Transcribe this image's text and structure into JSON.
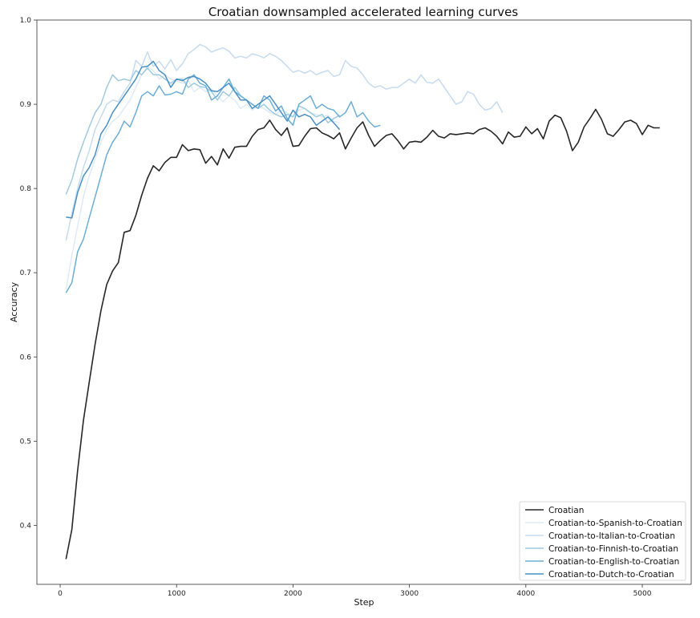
{
  "chart_data": {
    "type": "line",
    "title": "Croatian downsampled accelerated learning curves",
    "xlabel": "Step",
    "ylabel": "Accuracy",
    "xlim": [
      -200,
      5420
    ],
    "ylim": [
      0.33,
      1.0
    ],
    "xticks": [
      0,
      1000,
      2000,
      3000,
      4000,
      5000
    ],
    "yticks": [
      0.4,
      0.5,
      0.6,
      0.7,
      0.8,
      0.9,
      1.0
    ],
    "xtick_labels": [
      "0",
      "1000",
      "2000",
      "3000",
      "4000",
      "5000"
    ],
    "ytick_labels": [
      "0.4",
      "0.5",
      "0.6",
      "0.7",
      "0.8",
      "0.9",
      "1.0"
    ],
    "grid": false,
    "legend_position": "lower-right",
    "series": [
      {
        "name": "Croatian",
        "color": "#262626",
        "x": [
          50,
          100,
          150,
          200,
          250,
          300,
          350,
          400,
          450,
          500,
          550,
          600,
          650,
          700,
          750,
          800,
          850,
          900,
          950,
          1000,
          1050,
          1100,
          1150,
          1200,
          1250,
          1300,
          1350,
          1400,
          1450,
          1500,
          1550,
          1600,
          1650,
          1700,
          1750,
          1800,
          1850,
          1900,
          1950,
          2000,
          2050,
          2100,
          2150,
          2200,
          2250,
          2300,
          2350,
          2400,
          2450,
          2500,
          2550,
          2600,
          2650,
          2700,
          2750,
          2800,
          2850,
          2900,
          2950,
          3000,
          3050,
          3100,
          3150,
          3200,
          3250,
          3300,
          3350,
          3400,
          3450,
          3500,
          3550,
          3600,
          3650,
          3700,
          3750,
          3800,
          3850,
          3900,
          3950,
          4000,
          4050,
          4100,
          4150,
          4200,
          4250,
          4300,
          4350,
          4400,
          4450,
          4500,
          4550,
          4600,
          4650,
          4700,
          4750,
          4800,
          4850,
          4900,
          4950,
          5000,
          5050,
          5100,
          5150
        ],
        "y": [
          0.36,
          0.395,
          0.465,
          0.525,
          0.57,
          0.615,
          0.655,
          0.686,
          0.702,
          0.712,
          0.748,
          0.75,
          0.768,
          0.792,
          0.812,
          0.827,
          0.821,
          0.831,
          0.837,
          0.837,
          0.852,
          0.845,
          0.847,
          0.846,
          0.83,
          0.838,
          0.828,
          0.847,
          0.836,
          0.849,
          0.85,
          0.85,
          0.862,
          0.87,
          0.872,
          0.881,
          0.87,
          0.863,
          0.872,
          0.85,
          0.851,
          0.862,
          0.871,
          0.872,
          0.866,
          0.863,
          0.859,
          0.866,
          0.847,
          0.86,
          0.872,
          0.879,
          0.863,
          0.85,
          0.857,
          0.863,
          0.865,
          0.857,
          0.847,
          0.855,
          0.856,
          0.855,
          0.861,
          0.869,
          0.862,
          0.86,
          0.865,
          0.864,
          0.865,
          0.866,
          0.865,
          0.87,
          0.872,
          0.868,
          0.862,
          0.853,
          0.867,
          0.861,
          0.862,
          0.873,
          0.865,
          0.871,
          0.859,
          0.88,
          0.887,
          0.884,
          0.868,
          0.845,
          0.855,
          0.873,
          0.883,
          0.894,
          0.882,
          0.865,
          0.862,
          0.87,
          0.879,
          0.881,
          0.877,
          0.864,
          0.875,
          0.872,
          0.872
        ]
      },
      {
        "name": "Croatian-to-Spanish-to-Croatian",
        "color": "#deebf7",
        "x": [
          50,
          100,
          150,
          200,
          250,
          300,
          350,
          400,
          450,
          500,
          550,
          600,
          650,
          700,
          750,
          800,
          850,
          900,
          950,
          1000,
          1050,
          1100,
          1150,
          1200,
          1250,
          1300,
          1350,
          1400,
          1450,
          1500,
          1550,
          1600,
          1650,
          1700,
          1750,
          1800,
          1850,
          1900,
          1950,
          2000,
          2050,
          2100,
          2150,
          2200,
          2250,
          2300,
          2350,
          2400
        ],
        "y": [
          0.68,
          0.72,
          0.755,
          0.79,
          0.815,
          0.835,
          0.855,
          0.87,
          0.88,
          0.885,
          0.895,
          0.905,
          0.92,
          0.935,
          0.945,
          0.94,
          0.93,
          0.935,
          0.93,
          0.928,
          0.925,
          0.928,
          0.915,
          0.92,
          0.915,
          0.918,
          0.91,
          0.903,
          0.91,
          0.905,
          0.895,
          0.9,
          0.893,
          0.898,
          0.895,
          0.89,
          0.888,
          0.893,
          0.89,
          0.885,
          0.893,
          0.895,
          0.89,
          0.888,
          0.885,
          0.887,
          0.88,
          0.878
        ]
      },
      {
        "name": "Croatian-to-Italian-to-Croatian",
        "color": "#c6dbef",
        "x": [
          50,
          100,
          150,
          200,
          250,
          300,
          350,
          400,
          450,
          500,
          550,
          600,
          650,
          700,
          750,
          800,
          850,
          900,
          950,
          1000,
          1050,
          1100,
          1150,
          1200,
          1250,
          1300,
          1350,
          1400,
          1450,
          1500,
          1550,
          1600,
          1650,
          1700,
          1750,
          1800,
          1850,
          1900,
          1950,
          2000,
          2050,
          2100,
          2150,
          2200,
          2250,
          2300,
          2350,
          2400,
          2450,
          2500,
          2550,
          2600,
          2650,
          2700,
          2750,
          2800,
          2850,
          2900,
          2950,
          3000,
          3050,
          3100,
          3150,
          3200,
          3250,
          3300,
          3350,
          3400,
          3450,
          3500,
          3550,
          3600,
          3650,
          3700,
          3750,
          3800
        ],
        "y": [
          0.738,
          0.77,
          0.8,
          0.825,
          0.845,
          0.87,
          0.885,
          0.9,
          0.905,
          0.903,
          0.915,
          0.925,
          0.952,
          0.945,
          0.962,
          0.945,
          0.951,
          0.942,
          0.953,
          0.94,
          0.948,
          0.96,
          0.965,
          0.971,
          0.968,
          0.962,
          0.965,
          0.967,
          0.963,
          0.955,
          0.957,
          0.955,
          0.96,
          0.958,
          0.955,
          0.96,
          0.957,
          0.952,
          0.945,
          0.938,
          0.94,
          0.937,
          0.94,
          0.935,
          0.938,
          0.94,
          0.933,
          0.935,
          0.952,
          0.945,
          0.943,
          0.935,
          0.925,
          0.92,
          0.922,
          0.918,
          0.92,
          0.92,
          0.925,
          0.93,
          0.925,
          0.935,
          0.926,
          0.925,
          0.93,
          0.92,
          0.91,
          0.9,
          0.903,
          0.915,
          0.912,
          0.9,
          0.893,
          0.895,
          0.903,
          0.89
        ]
      },
      {
        "name": "Croatian-to-Finnish-to-Croatian",
        "color": "#9ecae1",
        "x": [
          50,
          100,
          150,
          200,
          250,
          300,
          350,
          400,
          450,
          500,
          550,
          600,
          650,
          700,
          750,
          800,
          850,
          900,
          950,
          1000,
          1050,
          1100,
          1150,
          1200,
          1250,
          1300,
          1350,
          1400,
          1450,
          1500,
          1550,
          1600,
          1650,
          1700,
          1750,
          1800,
          1850,
          1900,
          1950,
          2000,
          2050,
          2100,
          2150,
          2200,
          2250,
          2300,
          2350,
          2400
        ],
        "y": [
          0.793,
          0.81,
          0.835,
          0.855,
          0.873,
          0.89,
          0.9,
          0.92,
          0.935,
          0.928,
          0.93,
          0.928,
          0.94,
          0.935,
          0.943,
          0.935,
          0.935,
          0.93,
          0.925,
          0.93,
          0.93,
          0.92,
          0.925,
          0.921,
          0.92,
          0.915,
          0.905,
          0.915,
          0.91,
          0.92,
          0.91,
          0.905,
          0.9,
          0.895,
          0.9,
          0.893,
          0.888,
          0.885,
          0.888,
          0.885,
          0.898,
          0.895,
          0.89,
          0.885,
          0.888,
          0.878,
          0.883,
          0.887
        ]
      },
      {
        "name": "Croatian-to-English-to-Croatian",
        "color": "#6baed6",
        "x": [
          50,
          100,
          150,
          200,
          250,
          300,
          350,
          400,
          450,
          500,
          550,
          600,
          650,
          700,
          750,
          800,
          850,
          900,
          950,
          1000,
          1050,
          1100,
          1150,
          1200,
          1250,
          1300,
          1350,
          1400,
          1450,
          1500,
          1550,
          1600,
          1650,
          1700,
          1750,
          1800,
          1850,
          1900,
          1950,
          2000,
          2050,
          2100,
          2150,
          2200,
          2250,
          2300,
          2350,
          2400,
          2450,
          2500,
          2550,
          2600,
          2650,
          2700,
          2750
        ],
        "y": [
          0.676,
          0.688,
          0.725,
          0.74,
          0.765,
          0.79,
          0.815,
          0.84,
          0.855,
          0.865,
          0.88,
          0.873,
          0.89,
          0.91,
          0.915,
          0.91,
          0.922,
          0.911,
          0.912,
          0.915,
          0.912,
          0.93,
          0.935,
          0.925,
          0.922,
          0.905,
          0.91,
          0.92,
          0.93,
          0.915,
          0.91,
          0.905,
          0.9,
          0.895,
          0.91,
          0.905,
          0.892,
          0.898,
          0.883,
          0.875,
          0.9,
          0.905,
          0.91,
          0.895,
          0.9,
          0.895,
          0.893,
          0.885,
          0.89,
          0.903,
          0.885,
          0.89,
          0.88,
          0.873,
          0.875
        ]
      },
      {
        "name": "Croatian-to-Dutch-to-Croatian",
        "color": "#4a90c4",
        "x": [
          50,
          100,
          150,
          200,
          250,
          300,
          350,
          400,
          450,
          500,
          550,
          600,
          650,
          700,
          750,
          800,
          850,
          900,
          950,
          1000,
          1050,
          1100,
          1150,
          1200,
          1250,
          1300,
          1350,
          1400,
          1450,
          1500,
          1550,
          1600,
          1650,
          1700,
          1750,
          1800,
          1850,
          1900,
          1950,
          2000,
          2050,
          2100,
          2150,
          2200,
          2250,
          2300,
          2350,
          2400
        ],
        "y": [
          0.766,
          0.765,
          0.795,
          0.815,
          0.825,
          0.84,
          0.865,
          0.875,
          0.89,
          0.9,
          0.91,
          0.92,
          0.93,
          0.944,
          0.945,
          0.951,
          0.94,
          0.935,
          0.92,
          0.93,
          0.928,
          0.932,
          0.933,
          0.93,
          0.925,
          0.916,
          0.915,
          0.92,
          0.925,
          0.915,
          0.905,
          0.905,
          0.895,
          0.9,
          0.905,
          0.91,
          0.9,
          0.89,
          0.88,
          0.893,
          0.885,
          0.888,
          0.885,
          0.875,
          0.88,
          0.885,
          0.878,
          0.87
        ]
      }
    ]
  }
}
